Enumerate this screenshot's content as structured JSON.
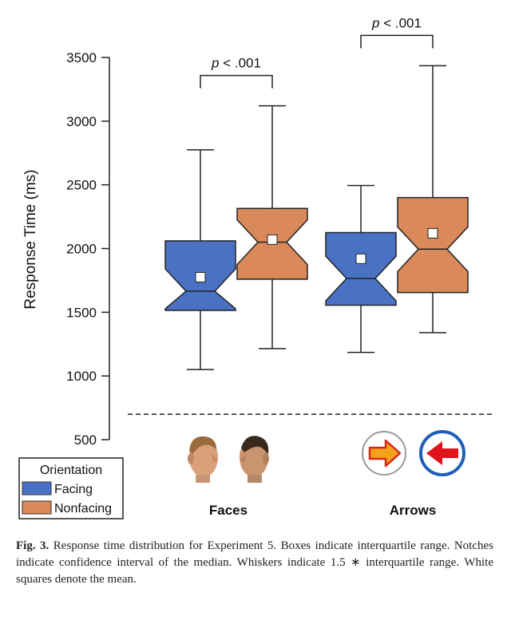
{
  "chart_data": {
    "type": "box",
    "ylabel": "Response Time (ms)",
    "ylim": [
      500,
      3500
    ],
    "yticks": [
      500,
      1000,
      1500,
      2000,
      2500,
      3000,
      3500
    ],
    "categories": [
      "Faces",
      "Arrows"
    ],
    "reference_line": {
      "y": 700,
      "style": "dashed"
    },
    "series": [
      {
        "name": "Facing",
        "color": "#4a72c4",
        "boxes": [
          {
            "category": "Faces",
            "whisker_low": 1050,
            "q1": 1515,
            "median": 1665,
            "q3": 2060,
            "whisker_high": 2775,
            "mean": 1775
          },
          {
            "category": "Arrows",
            "whisker_low": 1185,
            "q1": 1555,
            "median": 1765,
            "q3": 2125,
            "whisker_high": 2495,
            "mean": 1920
          }
        ]
      },
      {
        "name": "Nonfacing",
        "color": "#d9895a",
        "boxes": [
          {
            "category": "Faces",
            "whisker_low": 1215,
            "q1": 1760,
            "median": 2050,
            "q3": 2315,
            "whisker_high": 3120,
            "mean": 2070
          },
          {
            "category": "Arrows",
            "whisker_low": 1340,
            "q1": 1655,
            "median": 1995,
            "q3": 2400,
            "whisker_high": 3435,
            "mean": 2120
          }
        ]
      }
    ],
    "significance": [
      {
        "category": "Faces",
        "p_prefix": "p",
        "label": " < .001"
      },
      {
        "category": "Arrows",
        "p_prefix": "p",
        "label": " < .001"
      }
    ],
    "legend": {
      "title": "Orientation",
      "position": "bottom-left",
      "entries": [
        "Facing",
        "Nonfacing"
      ]
    }
  },
  "icons": {
    "faces": [
      "facing-face-left-icon",
      "facing-face-right-icon"
    ],
    "arrows": [
      "arrow-right-icon",
      "arrow-left-icon"
    ]
  },
  "caption": {
    "label": "Fig. 3.",
    "text": " Response time distribution for Experiment 5. Boxes indicate interquartile range. Notches indicate confidence interval of the median. Whiskers indicate 1.5 ∗ interquartile range. White squares denote the mean."
  }
}
